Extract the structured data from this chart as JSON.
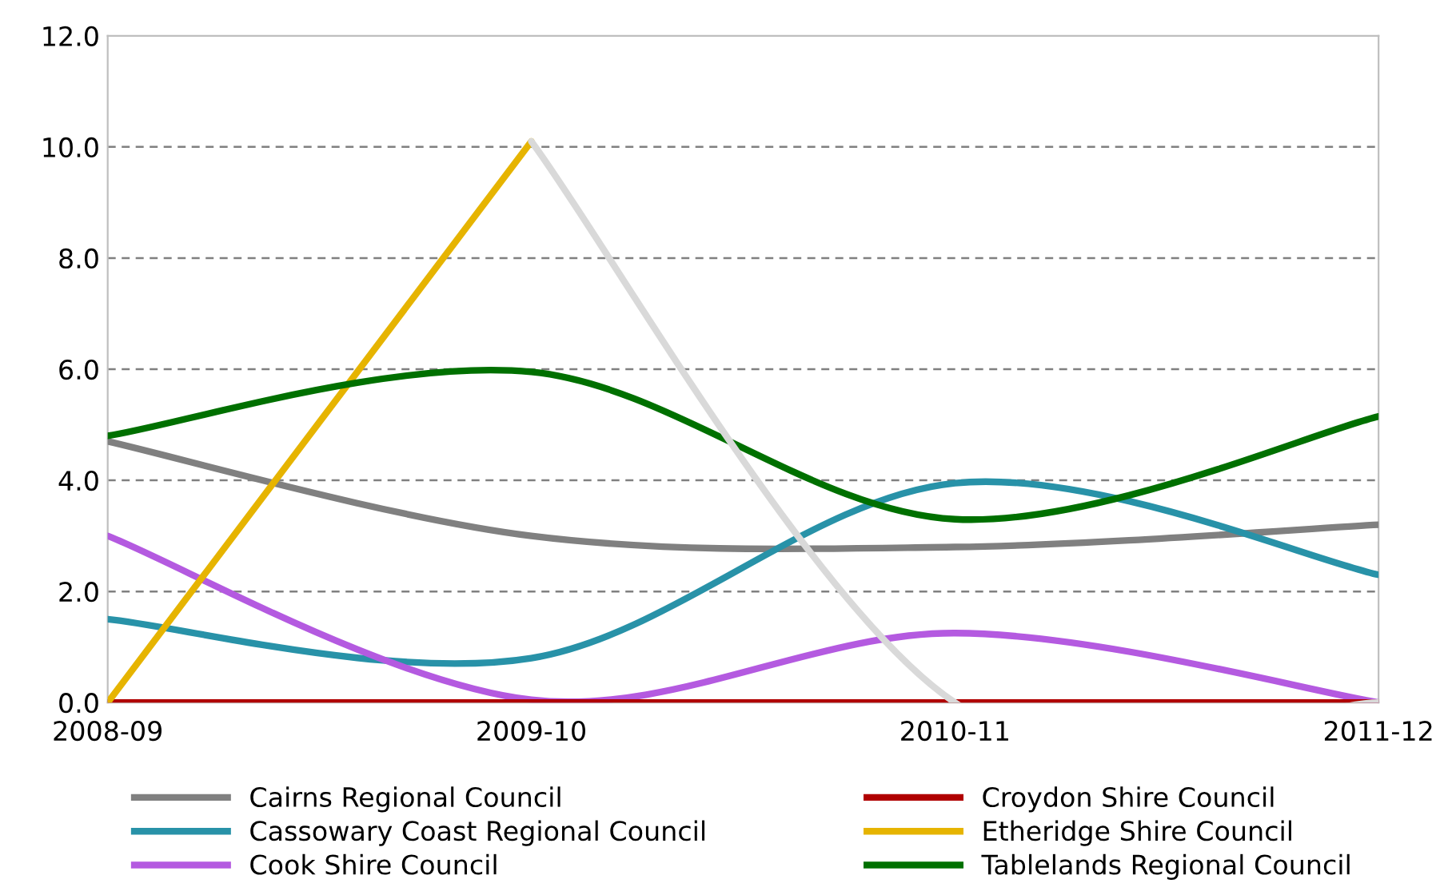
{
  "chart_data": {
    "type": "line",
    "categories": [
      "2008-09",
      "2009-10",
      "2010-11",
      "2011-12"
    ],
    "series": [
      {
        "name": "Cairns Regional Council",
        "color": "#808080",
        "values": [
          4.7,
          3.0,
          2.8,
          3.2
        ]
      },
      {
        "name": "Cassowary Coast Regional Council",
        "color": "#2892a8",
        "values": [
          1.5,
          0.8,
          3.95,
          2.3
        ]
      },
      {
        "name": "Cook Shire Council",
        "color": "#b45ae0",
        "values": [
          3.0,
          0.05,
          1.25,
          0.0
        ]
      },
      {
        "name": "Croydon Shire Council",
        "color": "#b00000",
        "values": [
          0.0,
          0.0,
          0.0,
          0.0
        ]
      },
      {
        "name": "Etheridge Shire Council",
        "color": "#e6b400",
        "values": [
          0.0,
          10.1,
          null,
          null
        ]
      },
      {
        "name": "Tablelands Regional Council",
        "color": "#007000",
        "values": [
          4.8,
          5.95,
          3.3,
          5.15
        ]
      },
      {
        "color": "#d9d9d9",
        "values": [
          null,
          10.1,
          0.0,
          0.0
        ]
      }
    ],
    "ylim": [
      0,
      12
    ],
    "yticks": [
      {
        "value": 0,
        "label": "0.0"
      },
      {
        "value": 2,
        "label": "2.0"
      },
      {
        "value": 4,
        "label": "4.0"
      },
      {
        "value": 6,
        "label": "6.0"
      },
      {
        "value": 8,
        "label": "8.0"
      },
      {
        "value": 10,
        "label": "10.0"
      },
      {
        "value": 12,
        "label": "12.0"
      }
    ],
    "grid": "y",
    "legend": "bottom",
    "marker": "none",
    "line_style": "solid"
  }
}
